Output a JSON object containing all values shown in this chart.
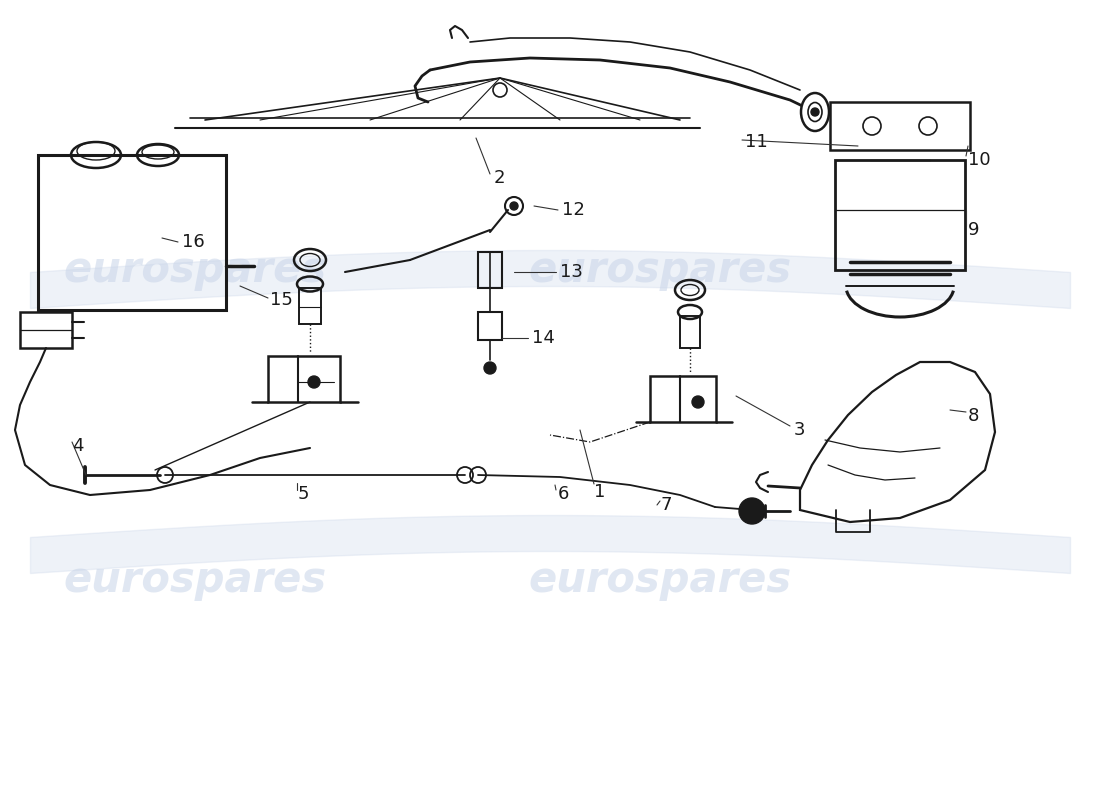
{
  "bg_color": "#ffffff",
  "line_color": "#1a1a1a",
  "wm_color": "#c8d4e8",
  "wm_text": "eurospares",
  "fig_w": 11.0,
  "fig_h": 8.0,
  "dpi": 100
}
